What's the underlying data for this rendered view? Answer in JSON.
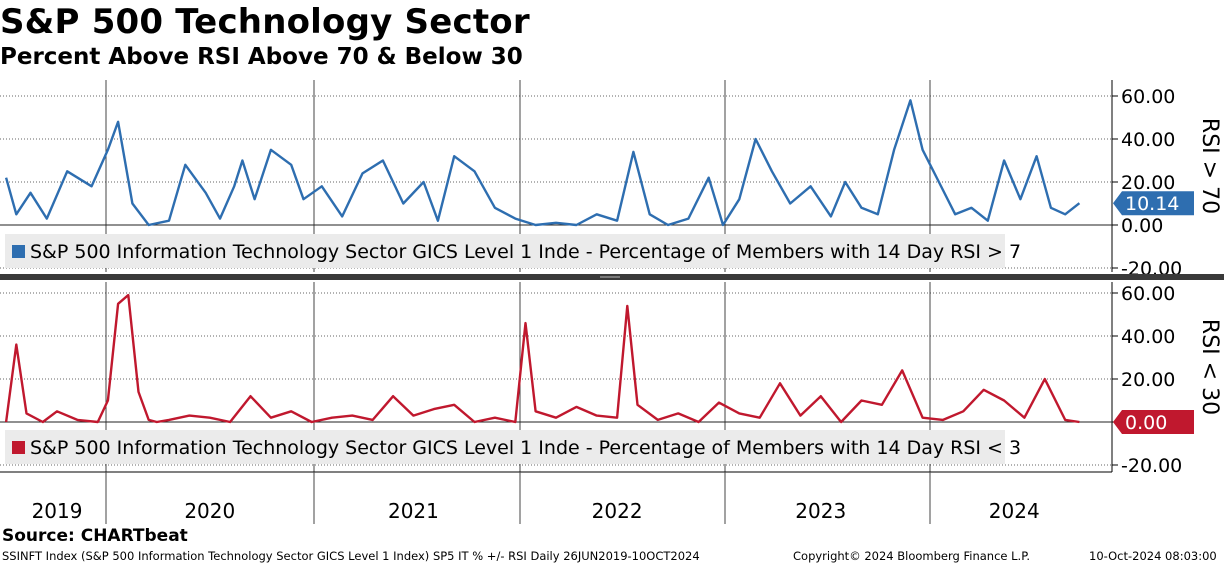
{
  "header": {
    "title": "S&P 500 Technology Sector",
    "subtitle": "Percent Above RSI Above 70 & Below 30"
  },
  "source": "Source: CHARTbeat",
  "footer": {
    "left": "SSINFT Index (S&P 500 Information Technology Sector GICS Level 1 Index) SP5 IT % +/- RSI  Daily 26JUN2019-10OCT2024",
    "copyright": "Copyright© 2024 Bloomberg Finance L.P.",
    "timestamp": "10-Oct-2024 08:03:00"
  },
  "colors": {
    "rsi70": "#2e6eb0",
    "rsi30": "#c0182e",
    "grid": "#333333"
  },
  "chart_data": [
    {
      "type": "line",
      "panel": "top",
      "side_label": "RSI > 70",
      "legend": "S&P 500 Information Technology Sector GICS Level 1 Inde - Percentage of Members with 14 Day RSI > 7",
      "last_value_label": "10.14",
      "ylim": [
        -25,
        62
      ],
      "yticks": [
        -20,
        0,
        20,
        40,
        60
      ],
      "ytick_labels": [
        "-20.00",
        "0.00",
        "20.00",
        "40.00",
        "60.00"
      ],
      "x": [
        2019.5,
        2019.55,
        2019.62,
        2019.7,
        2019.8,
        2019.92,
        2020.0,
        2020.05,
        2020.12,
        2020.2,
        2020.3,
        2020.38,
        2020.48,
        2020.55,
        2020.62,
        2020.66,
        2020.72,
        2020.8,
        2020.9,
        2020.96,
        2021.05,
        2021.15,
        2021.25,
        2021.35,
        2021.45,
        2021.55,
        2021.62,
        2021.7,
        2021.8,
        2021.9,
        2022.0,
        2022.1,
        2022.2,
        2022.3,
        2022.4,
        2022.5,
        2022.58,
        2022.66,
        2022.75,
        2022.85,
        2022.95,
        2023.02,
        2023.1,
        2023.18,
        2023.26,
        2023.35,
        2023.45,
        2023.55,
        2023.62,
        2023.7,
        2023.78,
        2023.86,
        2023.94,
        2024.0,
        2024.08,
        2024.16,
        2024.24,
        2024.32,
        2024.4,
        2024.48,
        2024.56,
        2024.63,
        2024.7,
        2024.77
      ],
      "values": [
        22,
        5,
        15,
        3,
        25,
        18,
        35,
        48,
        10,
        0,
        2,
        28,
        15,
        3,
        18,
        30,
        12,
        35,
        28,
        12,
        18,
        4,
        24,
        30,
        10,
        20,
        2,
        32,
        25,
        8,
        3,
        0,
        1,
        0,
        5,
        2,
        34,
        5,
        0,
        3,
        22,
        0,
        12,
        40,
        25,
        10,
        18,
        4,
        20,
        8,
        5,
        35,
        58,
        35,
        20,
        5,
        8,
        2,
        30,
        12,
        32,
        8,
        5,
        10.14
      ]
    },
    {
      "type": "line",
      "panel": "bottom",
      "side_label": "RSI < 30",
      "legend": "S&P 500 Information Technology Sector GICS Level 1 Inde - Percentage of Members with 14 Day RSI < 3",
      "last_value_label": "0.00",
      "ylim": [
        -25,
        64
      ],
      "yticks": [
        -20,
        0,
        20,
        40,
        60
      ],
      "ytick_labels": [
        "-20.00",
        "0.00",
        "20.00",
        "40.00",
        "60.00"
      ],
      "x": [
        2019.5,
        2019.55,
        2019.6,
        2019.68,
        2019.75,
        2019.85,
        2019.95,
        2020.0,
        2020.05,
        2020.1,
        2020.15,
        2020.2,
        2020.24,
        2020.3,
        2020.4,
        2020.5,
        2020.6,
        2020.7,
        2020.8,
        2020.9,
        2021.0,
        2021.1,
        2021.2,
        2021.3,
        2021.4,
        2021.5,
        2021.6,
        2021.7,
        2021.8,
        2021.9,
        2022.0,
        2022.05,
        2022.1,
        2022.2,
        2022.3,
        2022.4,
        2022.5,
        2022.55,
        2022.6,
        2022.7,
        2022.8,
        2022.9,
        2023.0,
        2023.1,
        2023.2,
        2023.3,
        2023.4,
        2023.5,
        2023.6,
        2023.7,
        2023.8,
        2023.9,
        2024.0,
        2024.1,
        2024.2,
        2024.3,
        2024.4,
        2024.5,
        2024.6,
        2024.7,
        2024.77
      ],
      "values": [
        0,
        36,
        4,
        0,
        5,
        1,
        0,
        10,
        55,
        59,
        14,
        1,
        0,
        1,
        3,
        2,
        0,
        12,
        2,
        5,
        0,
        2,
        3,
        1,
        12,
        3,
        6,
        8,
        0,
        2,
        0,
        46,
        5,
        2,
        7,
        3,
        2,
        54,
        8,
        1,
        4,
        0,
        9,
        4,
        2,
        18,
        3,
        12,
        0,
        10,
        8,
        24,
        2,
        1,
        5,
        15,
        10,
        2,
        20,
        1,
        0
      ]
    }
  ],
  "x_axis": {
    "year_labels": [
      "2019",
      "2020",
      "2021",
      "2022",
      "2023",
      "2024"
    ],
    "year_centers": [
      2019.75,
      2020.5,
      2021.5,
      2022.5,
      2023.5,
      2024.45
    ]
  }
}
